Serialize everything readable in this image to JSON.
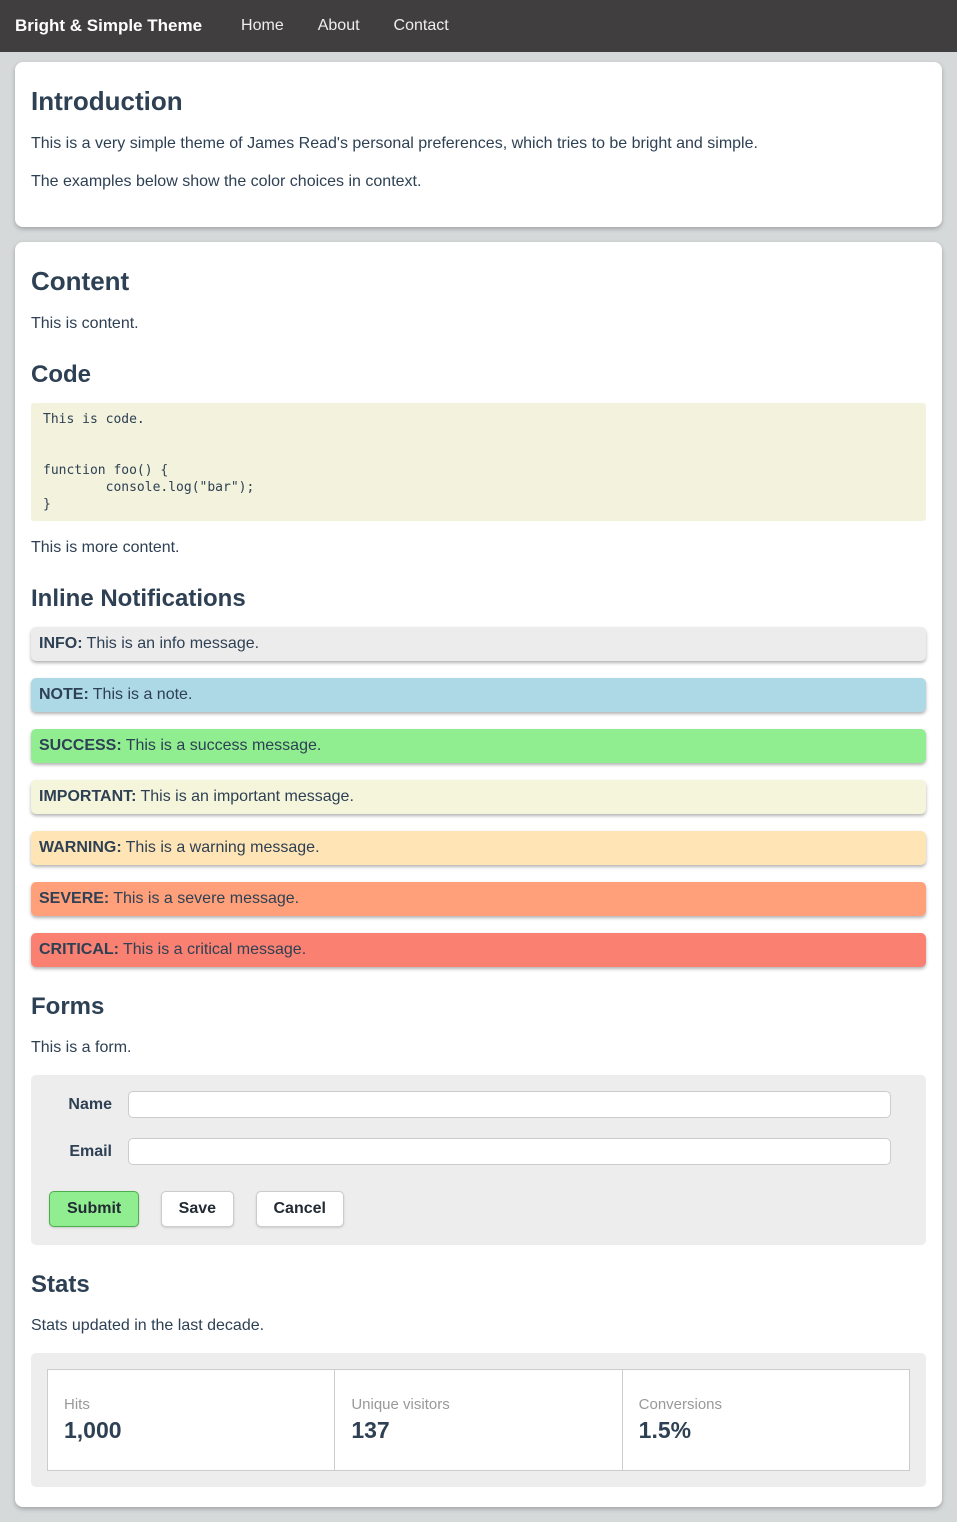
{
  "navbar": {
    "brand": "Bright & Simple Theme",
    "links": [
      {
        "label": "Home"
      },
      {
        "label": "About"
      },
      {
        "label": "Contact"
      }
    ]
  },
  "intro_card": {
    "title": "Introduction",
    "paragraph1": "This is a very simple theme of James Read's personal preferences, which tries to be bright and simple.",
    "paragraph2": "The examples below show the color choices in context."
  },
  "content_card": {
    "title": "Content",
    "intro_text": "This is content.",
    "code_section": {
      "title": "Code",
      "code": "This is code.\n\n\nfunction foo() {\n        console.log(\"bar\");\n}"
    },
    "more_text": "This is more content.",
    "notifications_section": {
      "title": "Inline Notifications",
      "items": [
        {
          "label": "INFO:",
          "message": "This is an info message.",
          "bg": "#ececec"
        },
        {
          "label": "NOTE:",
          "message": "This is a note.",
          "bg": "#add8e6"
        },
        {
          "label": "SUCCESS:",
          "message": "This is a success message.",
          "bg": "#90ee90"
        },
        {
          "label": "IMPORTANT:",
          "message": "This is an important message.",
          "bg": "#f5f5dc"
        },
        {
          "label": "WARNING:",
          "message": "This is a warning message.",
          "bg": "#ffe4b5"
        },
        {
          "label": "SEVERE:",
          "message": "This is a severe message.",
          "bg": "#ffa07a"
        },
        {
          "label": "CRITICAL:",
          "message": "This is a critical message.",
          "bg": "#fa8072"
        }
      ]
    },
    "forms_section": {
      "title": "Forms",
      "intro_text": "This is a form.",
      "fields": [
        {
          "label": "Name",
          "value": "",
          "placeholder": ""
        },
        {
          "label": "Email",
          "value": "",
          "placeholder": ""
        }
      ],
      "buttons": [
        {
          "label": "Submit"
        },
        {
          "label": "Save"
        },
        {
          "label": "Cancel"
        }
      ]
    },
    "stats_section": {
      "title": "Stats",
      "intro_text": "Stats updated in the last decade.",
      "stats": [
        {
          "label": "Hits",
          "value": "1,000"
        },
        {
          "label": "Unique visitors",
          "value": "137"
        },
        {
          "label": "Conversions",
          "value": "1.5%"
        }
      ]
    }
  },
  "colors": {
    "navbar_bg": "#403e3e",
    "page_bg": "#d6d9da",
    "card_bg": "#ffffff",
    "heading_text": "#2e4053",
    "code_bg": "#f2f2dd",
    "panel_bg": "#ededed",
    "submit_bg": "#90ee90",
    "submit_border": "#4cae4c"
  }
}
